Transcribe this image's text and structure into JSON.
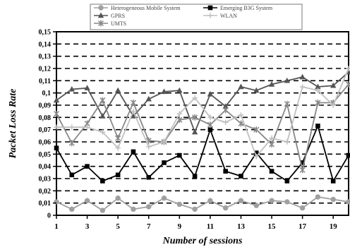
{
  "chart_data": {
    "type": "line",
    "xlabel": "Number of sessions",
    "ylabel": "Packet Loss Rate",
    "ylim": [
      0,
      0.15
    ],
    "yticks": [
      0,
      0.01,
      0.02,
      0.03,
      0.04,
      0.05,
      0.06,
      0.07,
      0.08,
      0.09,
      0.1,
      0.11,
      0.12,
      0.13,
      0.14,
      0.15
    ],
    "ytick_labels": [
      "0",
      "0,01",
      "0,02",
      "0,03",
      "0,04",
      "0,05",
      "0,06",
      "0,07",
      "0,08",
      "0,09",
      "0,1",
      "0,11",
      "0,12",
      "0,13",
      "0,14",
      "0,15"
    ],
    "xticks": [
      1,
      3,
      5,
      7,
      9,
      11,
      13,
      15,
      17,
      19
    ],
    "xtick_labels": [
      "1",
      "3",
      "5",
      "7",
      "9",
      "11",
      "13",
      "15",
      "17",
      "19"
    ],
    "xlim": [
      1,
      20
    ],
    "grid": "horizontal dashed",
    "legend_position": "top",
    "x": [
      1,
      2,
      3,
      4,
      5,
      6,
      7,
      8,
      9,
      10,
      11,
      12,
      13,
      14,
      15,
      16,
      17,
      18,
      19,
      20
    ],
    "series": [
      {
        "name": "Heterogeneous Mobile System",
        "color": "#a0a0a0",
        "marker": "circle",
        "values": [
          0.011,
          0.005,
          0.012,
          0.004,
          0.014,
          0.005,
          0.007,
          0.014,
          0.009,
          0.005,
          0.012,
          0.006,
          0.012,
          0.008,
          0.012,
          0.011,
          0.006,
          0.015,
          0.013,
          0.011
        ]
      },
      {
        "name": "Emerging B3G System",
        "color": "#000000",
        "marker": "square",
        "values": [
          0.055,
          0.033,
          0.04,
          0.028,
          0.033,
          0.052,
          0.031,
          0.043,
          0.049,
          0.032,
          0.07,
          0.036,
          0.032,
          0.051,
          0.036,
          0.028,
          0.043,
          0.073,
          0.028,
          0.049
        ]
      },
      {
        "name": "GPRS",
        "color": "#555555",
        "marker": "triangle",
        "values": [
          0.094,
          0.103,
          0.104,
          0.081,
          0.102,
          0.081,
          0.095,
          0.101,
          0.102,
          0.068,
          0.099,
          0.089,
          0.105,
          0.102,
          0.107,
          0.11,
          0.113,
          0.105,
          0.106,
          0.117
        ]
      },
      {
        "name": "UMTS",
        "color": "#888888",
        "marker": "star",
        "values": [
          0.083,
          0.059,
          0.075,
          0.094,
          0.063,
          0.092,
          0.061,
          0.06,
          0.078,
          0.08,
          0.074,
          0.086,
          0.075,
          0.07,
          0.058,
          0.091,
          0.037,
          0.092,
          0.092,
          0.107
        ]
      },
      {
        "name": "WLAN",
        "color": "#c0c0c0",
        "marker": "cross",
        "values": [
          0.072,
          0.072,
          0.072,
          0.068,
          0.055,
          0.085,
          0.056,
          0.06,
          0.083,
          0.096,
          0.08,
          0.076,
          0.082,
          0.048,
          0.063,
          0.06,
          0.105,
          0.102,
          0.09,
          0.12
        ]
      }
    ]
  }
}
